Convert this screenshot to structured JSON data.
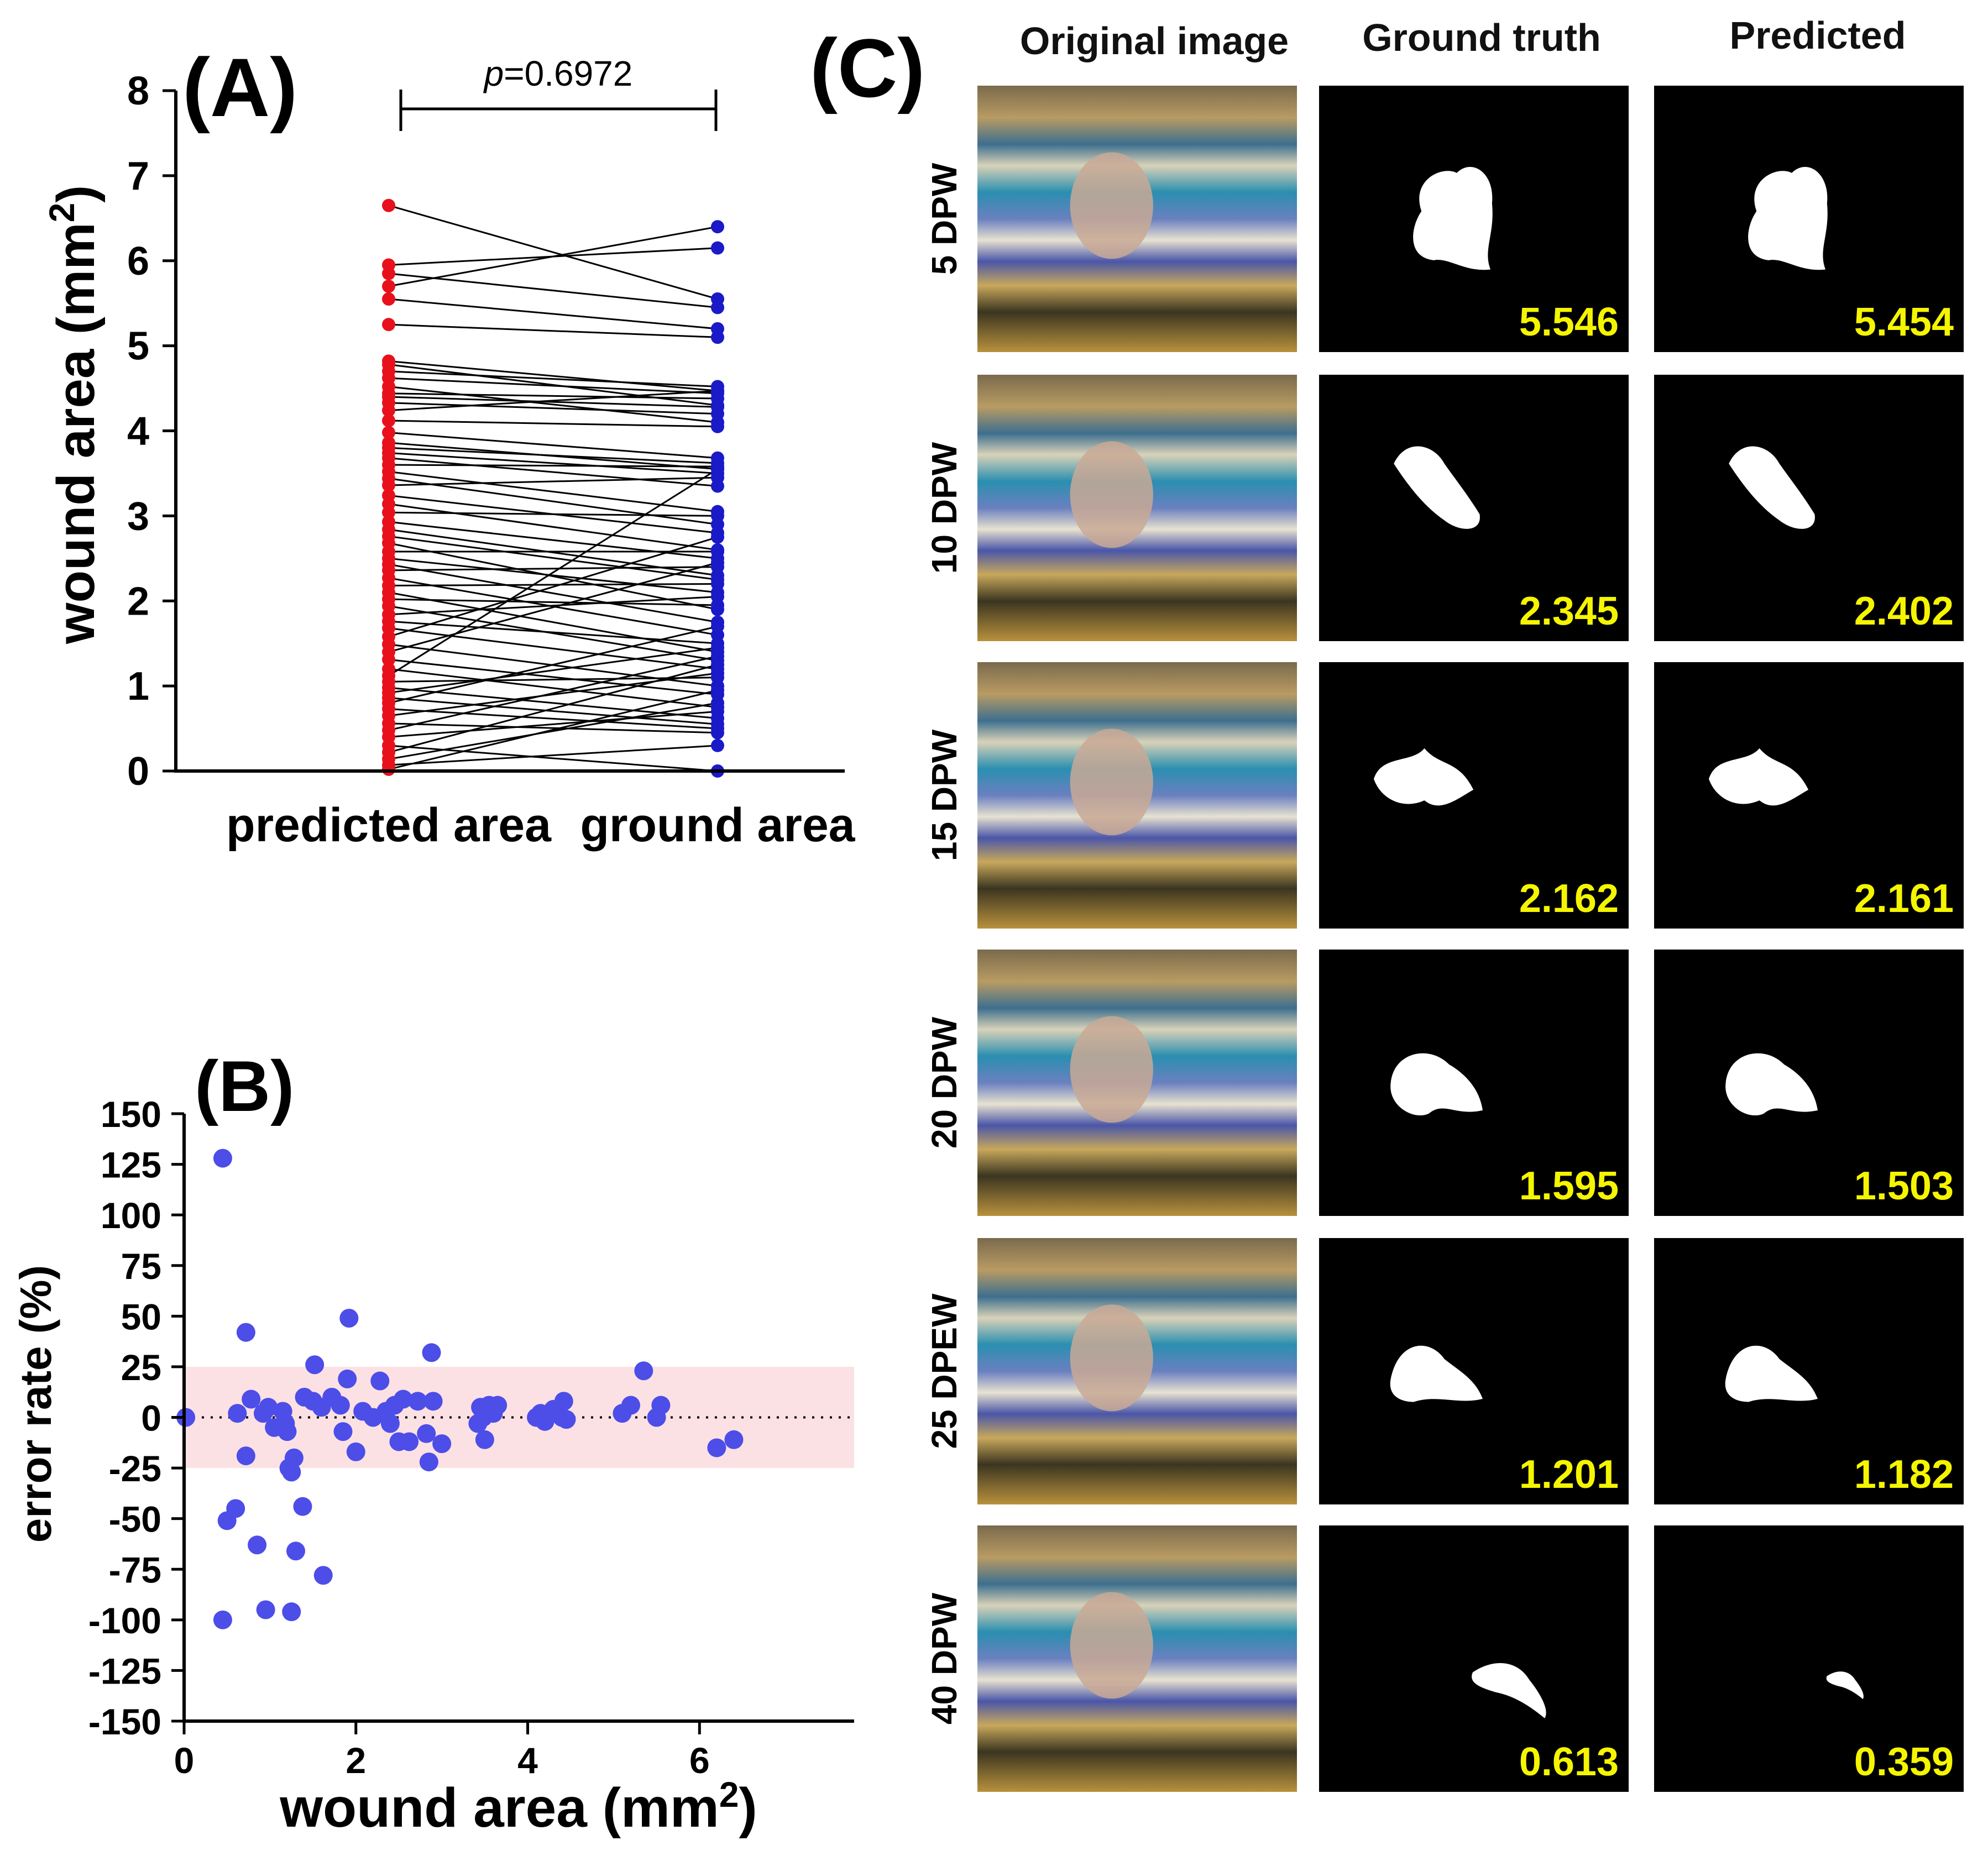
{
  "figure": {
    "panel_a_label": "(A)",
    "panel_b_label": "(B)",
    "panel_c_label": "(C)"
  },
  "colors": {
    "predicted_dot": "#e8111b",
    "ground_dot": "#1a1ac8",
    "scatter_dot": "#4d4de8",
    "band": "#fbe1e4",
    "value_text": "#f5f500"
  },
  "chart_data": [
    {
      "type": "paired-dot",
      "ylabel": "wound area (mm²)",
      "ylabel_main": "wound area (mm",
      "ylabel_sup": "2",
      "ylabel_close": ")",
      "ylim": [
        0,
        8
      ],
      "yticks": [
        "0",
        "1",
        "2",
        "3",
        "4",
        "5",
        "6",
        "7",
        "8"
      ],
      "categories": [
        "predicted area",
        "ground area"
      ],
      "p_label_italic": "p",
      "p_label_value": "=0.6972",
      "pairs": [
        [
          6.65,
          5.55
        ],
        [
          5.95,
          6.15
        ],
        [
          5.85,
          5.45
        ],
        [
          5.7,
          6.4
        ],
        [
          5.55,
          5.2
        ],
        [
          5.25,
          5.1
        ],
        [
          4.82,
          4.47
        ],
        [
          4.78,
          4.3
        ],
        [
          4.7,
          4.52
        ],
        [
          4.62,
          4.44
        ],
        [
          4.52,
          4.1
        ],
        [
          4.44,
          4.38
        ],
        [
          4.4,
          4.28
        ],
        [
          4.33,
          4.2
        ],
        [
          4.24,
          4.47
        ],
        [
          4.12,
          4.05
        ],
        [
          3.98,
          3.68
        ],
        [
          3.86,
          3.55
        ],
        [
          3.8,
          3.62
        ],
        [
          3.74,
          3.5
        ],
        [
          3.68,
          3.35
        ],
        [
          3.6,
          3.58
        ],
        [
          3.52,
          3.05
        ],
        [
          3.44,
          2.9
        ],
        [
          3.36,
          3.45
        ],
        [
          3.24,
          2.8
        ],
        [
          3.14,
          2.6
        ],
        [
          3.04,
          3.0
        ],
        [
          2.93,
          2.5
        ],
        [
          2.84,
          2.3
        ],
        [
          2.76,
          2.25
        ],
        [
          2.68,
          1.9
        ],
        [
          2.58,
          2.58
        ],
        [
          2.5,
          2.1
        ],
        [
          2.43,
          1.75
        ],
        [
          2.36,
          2.4
        ],
        [
          2.27,
          1.6
        ],
        [
          2.18,
          2.2
        ],
        [
          2.1,
          1.4
        ],
        [
          2.02,
          1.95
        ],
        [
          1.94,
          1.3
        ],
        [
          1.84,
          2.05
        ],
        [
          1.76,
          1.5
        ],
        [
          1.68,
          1.2
        ],
        [
          1.58,
          2.75
        ],
        [
          1.49,
          1.0
        ],
        [
          1.4,
          2.45
        ],
        [
          1.31,
          0.9
        ],
        [
          1.2,
          0.75
        ],
        [
          1.12,
          3.55
        ],
        [
          1.05,
          1.1
        ],
        [
          0.98,
          0.62
        ],
        [
          0.92,
          1.45
        ],
        [
          0.86,
          0.55
        ],
        [
          0.8,
          1.7
        ],
        [
          0.73,
          0.5
        ],
        [
          0.65,
          1.15
        ],
        [
          0.56,
          0.45
        ],
        [
          0.48,
          1.35
        ],
        [
          0.4,
          0.7
        ],
        [
          0.3,
          0.0
        ],
        [
          0.22,
          1.25
        ],
        [
          0.14,
          0.8
        ],
        [
          0.07,
          0.3
        ],
        [
          0.02,
          0.95
        ]
      ]
    },
    {
      "type": "scatter",
      "xlabel": "wound area (mm²)",
      "xlabel_main": "wound area (mm",
      "xlabel_sup": "2",
      "xlabel_close": ")",
      "ylabel": "error rate (%)",
      "xlim": [
        0,
        7.8
      ],
      "ylim": [
        -150,
        150
      ],
      "xticks": [
        "0",
        "2",
        "4",
        "6"
      ],
      "yticks": [
        "150",
        "125",
        "100",
        "75",
        "50",
        "25",
        "0",
        "-25",
        "-50",
        "-75",
        "-100",
        "-125",
        "-150"
      ],
      "band": [
        -25,
        25
      ],
      "reference_line": 0,
      "points": [
        [
          0.02,
          0
        ],
        [
          0.45,
          128
        ],
        [
          0.45,
          -100
        ],
        [
          0.5,
          -51
        ],
        [
          0.6,
          -45
        ],
        [
          0.62,
          2
        ],
        [
          0.72,
          -19
        ],
        [
          0.72,
          42
        ],
        [
          0.78,
          9
        ],
        [
          0.85,
          -63
        ],
        [
          0.92,
          2
        ],
        [
          0.95,
          -95
        ],
        [
          0.98,
          5
        ],
        [
          1.05,
          -5
        ],
        [
          1.15,
          3
        ],
        [
          1.18,
          -3
        ],
        [
          1.2,
          -7
        ],
        [
          1.22,
          -25
        ],
        [
          1.25,
          -27
        ],
        [
          1.28,
          -20
        ],
        [
          1.25,
          -96
        ],
        [
          1.3,
          -66
        ],
        [
          1.38,
          -44
        ],
        [
          1.4,
          10
        ],
        [
          1.5,
          8
        ],
        [
          1.52,
          26
        ],
        [
          1.6,
          5
        ],
        [
          1.62,
          -78
        ],
        [
          1.72,
          10
        ],
        [
          1.82,
          6
        ],
        [
          1.85,
          -7
        ],
        [
          1.9,
          19
        ],
        [
          1.92,
          49
        ],
        [
          2.0,
          -17
        ],
        [
          2.08,
          3
        ],
        [
          2.2,
          0
        ],
        [
          2.28,
          18
        ],
        [
          2.35,
          3
        ],
        [
          2.4,
          -3
        ],
        [
          2.45,
          6
        ],
        [
          2.5,
          -12
        ],
        [
          2.55,
          9
        ],
        [
          2.62,
          -12
        ],
        [
          2.72,
          8
        ],
        [
          2.82,
          -8
        ],
        [
          2.85,
          -22
        ],
        [
          2.88,
          32
        ],
        [
          2.9,
          8
        ],
        [
          3.0,
          -13
        ],
        [
          3.42,
          -3
        ],
        [
          3.45,
          5
        ],
        [
          3.48,
          0
        ],
        [
          3.5,
          -11
        ],
        [
          3.52,
          3
        ],
        [
          3.55,
          6
        ],
        [
          3.6,
          2
        ],
        [
          3.65,
          6
        ],
        [
          4.1,
          0
        ],
        [
          4.15,
          2
        ],
        [
          4.2,
          -2
        ],
        [
          4.3,
          4
        ],
        [
          4.35,
          3
        ],
        [
          4.4,
          0
        ],
        [
          4.42,
          8
        ],
        [
          4.45,
          -1
        ],
        [
          5.1,
          2
        ],
        [
          5.2,
          6
        ],
        [
          5.35,
          23
        ],
        [
          5.5,
          0
        ],
        [
          5.55,
          6
        ],
        [
          6.2,
          -15
        ],
        [
          6.4,
          -11
        ]
      ]
    }
  ],
  "grid": {
    "headers": [
      "Original image",
      "Ground truth",
      "Predicted"
    ],
    "rows": [
      {
        "label": "5 DPW",
        "gt": "5.546",
        "pred": "5.454"
      },
      {
        "label": "10 DPW",
        "gt": "2.345",
        "pred": "2.402"
      },
      {
        "label": "15 DPW",
        "gt": "2.162",
        "pred": "2.161"
      },
      {
        "label": "20 DPW",
        "gt": "1.595",
        "pred": "1.503"
      },
      {
        "label": "25 DPEW",
        "gt": "1.201",
        "pred": "1.182"
      },
      {
        "label": "40 DPW",
        "gt": "0.613",
        "pred": "0.359"
      }
    ]
  }
}
